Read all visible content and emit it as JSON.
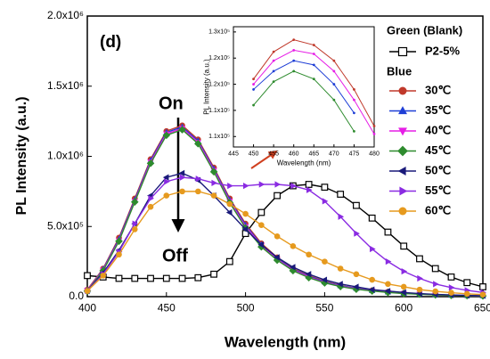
{
  "chart_data": [
    {
      "type": "line",
      "xlabel": "Wavelength (nm)",
      "ylabel": "PL Intensity (a.u.)",
      "annotations": [
        "(d)",
        "On",
        "Off"
      ],
      "legend_headings": [
        "Green (Blank)",
        "Blue"
      ],
      "xlim": [
        400,
        650
      ],
      "xticks": [
        400,
        450,
        500,
        550,
        600,
        650
      ],
      "ylim": [
        0,
        2000000
      ],
      "yticks": [
        {
          "value": 0,
          "label": "0.0"
        },
        {
          "value": 500000,
          "label": "5.0x10⁵"
        },
        {
          "value": 1000000,
          "label": "1.0x10⁶"
        },
        {
          "value": 1500000,
          "label": "1.5x10⁶"
        },
        {
          "value": 2000000,
          "label": "2.0x10⁶"
        }
      ],
      "x": [
        400,
        410,
        420,
        430,
        440,
        450,
        460,
        470,
        480,
        490,
        500,
        510,
        520,
        530,
        540,
        550,
        560,
        570,
        580,
        590,
        600,
        610,
        620,
        630,
        640,
        650
      ],
      "series": [
        {
          "name": "P2-5%",
          "color": "#000000",
          "marker": "square-open",
          "values": [
            150000,
            140000,
            130000,
            130000,
            130000,
            130000,
            130000,
            135000,
            160000,
            250000,
            450000,
            600000,
            720000,
            790000,
            800000,
            780000,
            730000,
            650000,
            560000,
            460000,
            360000,
            270000,
            200000,
            140000,
            100000,
            70000
          ]
        },
        {
          "name": "30℃",
          "color": "#c0392b",
          "marker": "circle",
          "values": [
            50000,
            200000,
            420000,
            700000,
            980000,
            1180000,
            1220000,
            1120000,
            920000,
            700000,
            520000,
            380000,
            280000,
            200000,
            150000,
            110000,
            80000,
            60000,
            45000,
            35000,
            25000,
            20000,
            15000,
            10000,
            8000,
            6000
          ]
        },
        {
          "name": "35℃",
          "color": "#1f3fd6",
          "marker": "triangle-up",
          "values": [
            45000,
            195000,
            410000,
            690000,
            970000,
            1170000,
            1210000,
            1110000,
            910000,
            690000,
            510000,
            370000,
            270000,
            195000,
            145000,
            105000,
            78000,
            58000,
            43000,
            33000,
            24000,
            19000,
            14000,
            10000,
            8000,
            6000
          ]
        },
        {
          "name": "40℃",
          "color": "#e61ee6",
          "marker": "triangle-down",
          "values": [
            45000,
            190000,
            400000,
            680000,
            960000,
            1160000,
            1200000,
            1100000,
            900000,
            680000,
            500000,
            365000,
            265000,
            190000,
            140000,
            100000,
            75000,
            55000,
            42000,
            32000,
            23000,
            18000,
            13000,
            9000,
            7000,
            5000
          ]
        },
        {
          "name": "45℃",
          "color": "#2e8b2e",
          "marker": "diamond",
          "values": [
            40000,
            185000,
            395000,
            675000,
            950000,
            1150000,
            1190000,
            1090000,
            890000,
            670000,
            490000,
            355000,
            260000,
            185000,
            135000,
            98000,
            72000,
            53000,
            40000,
            30000,
            22000,
            17000,
            12000,
            9000,
            7000,
            5000
          ]
        },
        {
          "name": "50℃",
          "color": "#1a1a7a",
          "marker": "triangle-left",
          "values": [
            40000,
            170000,
            330000,
            520000,
            720000,
            850000,
            880000,
            830000,
            720000,
            600000,
            480000,
            370000,
            280000,
            210000,
            160000,
            120000,
            90000,
            70000,
            50000,
            40000,
            30000,
            22000,
            16000,
            12000,
            9000,
            7000
          ]
        },
        {
          "name": "55℃",
          "color": "#8a2be2",
          "marker": "triangle-right",
          "values": [
            40000,
            160000,
            320000,
            520000,
            700000,
            820000,
            850000,
            840000,
            810000,
            790000,
            790000,
            800000,
            800000,
            790000,
            760000,
            680000,
            570000,
            450000,
            340000,
            250000,
            180000,
            130000,
            90000,
            65000,
            45000,
            30000
          ]
        },
        {
          "name": "60℃",
          "color": "#e69a1e",
          "marker": "circle",
          "values": [
            40000,
            150000,
            300000,
            480000,
            640000,
            720000,
            750000,
            750000,
            720000,
            660000,
            590000,
            510000,
            430000,
            360000,
            300000,
            250000,
            200000,
            160000,
            120000,
            90000,
            70000,
            50000,
            38000,
            28000,
            20000,
            15000
          ]
        }
      ]
    },
    {
      "type": "line",
      "xlabel": "Wavelength (nm)",
      "ylabel": "PL Intensity (a.u.)",
      "xlim": [
        445,
        480
      ],
      "xticks": [
        445,
        450,
        455,
        460,
        465,
        470,
        475,
        480
      ],
      "ylim": [
        108000,
        131000
      ],
      "yticks": [
        {
          "value": 110000,
          "label": "1.1x10⁵"
        },
        {
          "value": 115000,
          "label": "1.1x10⁵"
        },
        {
          "value": 120000,
          "label": "1.2x10⁵"
        },
        {
          "value": 125000,
          "label": "1.2x10⁵"
        },
        {
          "value": 130000,
          "label": "1.3x10⁵"
        }
      ],
      "x": [
        450,
        455,
        460,
        465,
        470,
        475,
        480
      ],
      "series": [
        {
          "color": "#c0392b",
          "values": [
            121000,
            126200,
            128500,
            127500,
            124500,
            119000,
            112000
          ]
        },
        {
          "color": "#e61ee6",
          "values": [
            120000,
            124500,
            126500,
            125800,
            122500,
            117000,
            110500
          ]
        },
        {
          "color": "#1f3fd6",
          "values": [
            119000,
            122500,
            124500,
            123700,
            120000,
            114500,
            null
          ]
        },
        {
          "color": "#2e8b2e",
          "values": [
            116000,
            120500,
            122500,
            121000,
            117000,
            111000,
            null
          ]
        }
      ]
    }
  ]
}
